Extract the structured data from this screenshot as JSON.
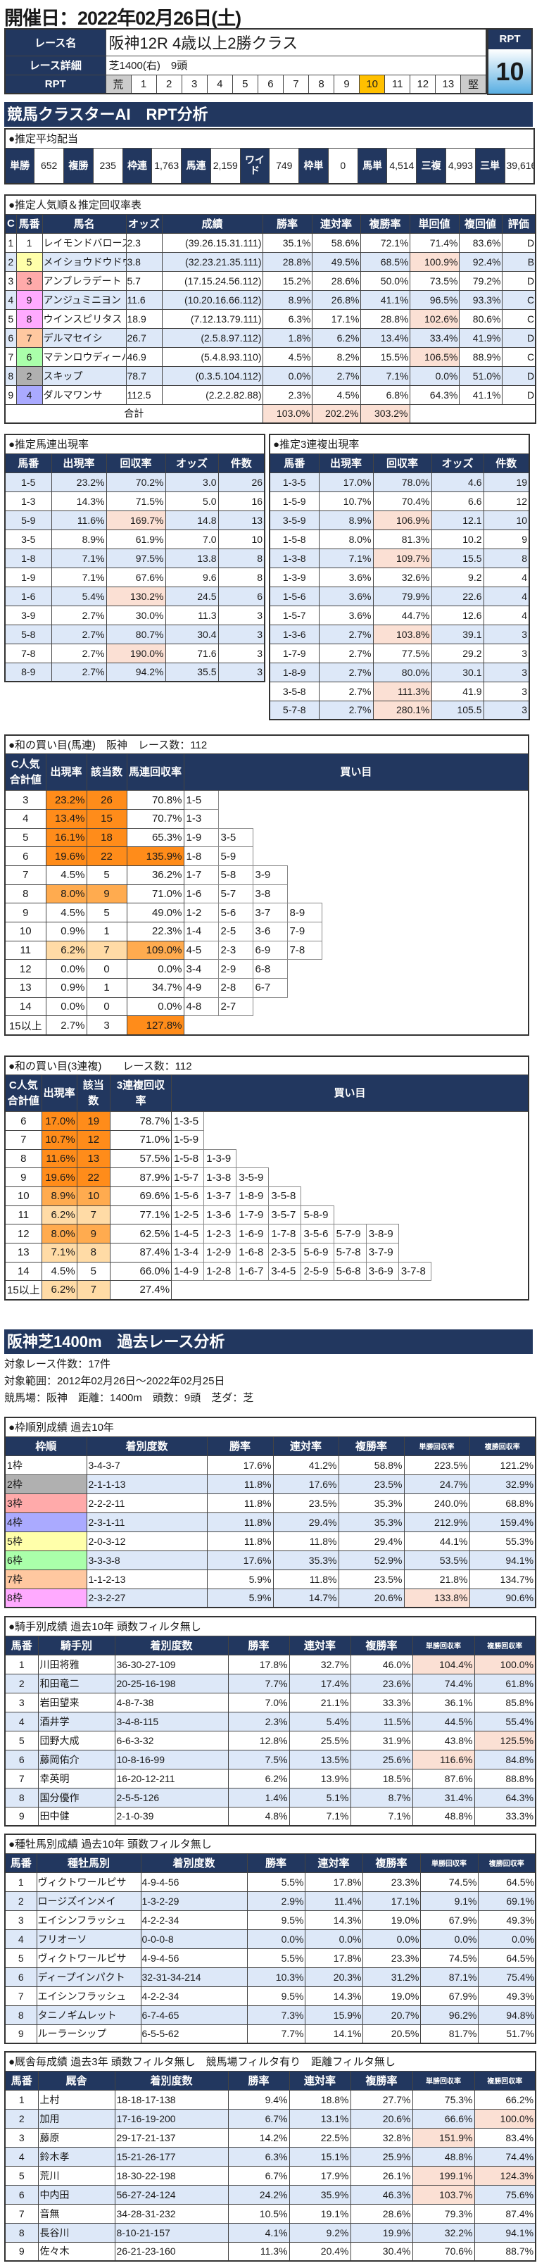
{
  "header": {
    "title": "開催日：2022年02月26日(土)"
  },
  "race": {
    "name_label": "レース名",
    "name": "阪神12R 4歳以上2勝クラス",
    "detail_label": "レース詳細",
    "detail": "芝1400(右)　9頭",
    "rpt_label": "RPT",
    "scale": [
      "荒",
      "1",
      "2",
      "3",
      "4",
      "5",
      "6",
      "7",
      "8",
      "9",
      "10",
      "11",
      "12",
      "13",
      "堅"
    ],
    "rpt_value": "10",
    "selected_color": "#ffc000"
  },
  "ai_section": {
    "title": "競馬クラスターAI　RPT分析"
  },
  "payout": {
    "title": "●推定平均配当",
    "items": [
      {
        "label": "単勝",
        "value": "652"
      },
      {
        "label": "複勝",
        "value": "235"
      },
      {
        "label": "枠連",
        "value": "1,763"
      },
      {
        "label": "馬連",
        "value": "2,159"
      },
      {
        "label": "ワイド",
        "value": "749"
      },
      {
        "label": "枠単",
        "value": "0"
      },
      {
        "label": "馬単",
        "value": "4,514"
      },
      {
        "label": "三複",
        "value": "4,993"
      },
      {
        "label": "三単",
        "value": "39,616"
      }
    ]
  },
  "popularity": {
    "title": "●推定人気順＆推定回収率表",
    "columns": [
      "C",
      "馬番",
      "馬名",
      "オッズ",
      "成績",
      "勝率",
      "連対率",
      "複勝率",
      "単回値",
      "複回値",
      "評価"
    ],
    "rows": [
      [
        "1",
        "1",
        "レイモンドバローズ",
        "2.3",
        "(39.26.15.31.111)",
        "35.1%",
        "58.6%",
        "72.1%",
        "71.4%",
        "83.6%",
        "D"
      ],
      [
        "2",
        "5",
        "メイショウドウドウ",
        "3.8",
        "(32.23.21.35.111)",
        "28.8%",
        "49.5%",
        "68.5%",
        "100.9%",
        "92.4%",
        "B"
      ],
      [
        "3",
        "3",
        "アンブレラデート",
        "5.7",
        "(17.15.24.56.112)",
        "15.2%",
        "28.6%",
        "50.0%",
        "73.5%",
        "79.2%",
        "D"
      ],
      [
        "4",
        "9",
        "アンジュミニヨン",
        "11.6",
        "(10.20.16.66.112)",
        "8.9%",
        "26.8%",
        "41.1%",
        "96.5%",
        "93.3%",
        "C"
      ],
      [
        "5",
        "8",
        "ウインスピリタス",
        "18.9",
        "(7.12.13.79.111)",
        "6.3%",
        "17.1%",
        "28.8%",
        "102.6%",
        "80.6%",
        "C"
      ],
      [
        "6",
        "7",
        "デルマセイシ",
        "26.7",
        "(2.5.8.97.112)",
        "1.8%",
        "6.2%",
        "13.4%",
        "33.4%",
        "41.9%",
        "D"
      ],
      [
        "7",
        "6",
        "マテンロウディーバ",
        "46.9",
        "(5.4.8.93.110)",
        "4.5%",
        "8.2%",
        "15.5%",
        "106.5%",
        "88.9%",
        "C"
      ],
      [
        "8",
        "2",
        "スキップ",
        "78.7",
        "(0.3.5.104.112)",
        "0.0%",
        "2.7%",
        "7.1%",
        "0.0%",
        "51.0%",
        "D"
      ],
      [
        "9",
        "4",
        "ダルマワンサ",
        "112.5",
        "(2.2.2.82.88)",
        "2.3%",
        "4.5%",
        "6.8%",
        "64.3%",
        "41.1%",
        "D"
      ]
    ],
    "num_colors": [
      "#ffffff",
      "#ffffaa",
      "#ffaaaa",
      "#ffaaff",
      "#ffaaff",
      "#ffc8a0",
      "#aaffaa",
      "#b0b0b0",
      "#aaaaff"
    ],
    "highlight": [
      [
        1,
        8
      ],
      [
        4,
        8
      ],
      [
        6,
        8
      ]
    ],
    "total_label": "合計",
    "totals": [
      "103.0%",
      "202.2%",
      "303.2%"
    ]
  },
  "umaren": {
    "title": "●推定馬連出現率",
    "columns": [
      "馬番",
      "出現率",
      "回収率",
      "オッズ",
      "件数"
    ],
    "rows": [
      [
        "1-5",
        "23.2%",
        "70.2%",
        "3.0",
        "26"
      ],
      [
        "1-3",
        "14.3%",
        "71.5%",
        "5.0",
        "16"
      ],
      [
        "5-9",
        "11.6%",
        "169.7%",
        "14.8",
        "13"
      ],
      [
        "3-5",
        "8.9%",
        "61.9%",
        "7.0",
        "10"
      ],
      [
        "1-8",
        "7.1%",
        "97.5%",
        "13.8",
        "8"
      ],
      [
        "1-9",
        "7.1%",
        "67.6%",
        "9.6",
        "8"
      ],
      [
        "1-6",
        "5.4%",
        "130.2%",
        "24.5",
        "6"
      ],
      [
        "3-9",
        "2.7%",
        "30.0%",
        "11.3",
        "3"
      ],
      [
        "5-8",
        "2.7%",
        "80.7%",
        "30.4",
        "3"
      ],
      [
        "7-8",
        "2.7%",
        "190.0%",
        "71.6",
        "3"
      ],
      [
        "8-9",
        "2.7%",
        "94.2%",
        "35.5",
        "3"
      ]
    ],
    "highlight": [
      [
        2,
        2
      ],
      [
        6,
        2
      ],
      [
        9,
        2
      ]
    ]
  },
  "sanrenpuku": {
    "title": "●推定3連複出現率",
    "columns": [
      "馬番",
      "出現率",
      "回収率",
      "オッズ",
      "件数"
    ],
    "rows": [
      [
        "1-3-5",
        "17.0%",
        "78.0%",
        "4.6",
        "19"
      ],
      [
        "1-5-9",
        "10.7%",
        "70.4%",
        "6.6",
        "12"
      ],
      [
        "3-5-9",
        "8.9%",
        "106.9%",
        "12.1",
        "10"
      ],
      [
        "1-5-8",
        "8.0%",
        "81.3%",
        "10.2",
        "9"
      ],
      [
        "1-3-8",
        "7.1%",
        "109.7%",
        "15.5",
        "8"
      ],
      [
        "1-3-9",
        "3.6%",
        "32.6%",
        "9.2",
        "4"
      ],
      [
        "1-5-6",
        "3.6%",
        "79.9%",
        "22.6",
        "4"
      ],
      [
        "1-5-7",
        "3.6%",
        "44.7%",
        "12.6",
        "4"
      ],
      [
        "1-3-6",
        "2.7%",
        "103.8%",
        "39.1",
        "3"
      ],
      [
        "1-7-9",
        "2.7%",
        "77.5%",
        "29.2",
        "3"
      ],
      [
        "1-8-9",
        "2.7%",
        "80.0%",
        "30.1",
        "3"
      ],
      [
        "3-5-8",
        "2.7%",
        "111.3%",
        "41.9",
        "3"
      ],
      [
        "5-7-8",
        "2.7%",
        "280.1%",
        "105.5",
        "3"
      ]
    ],
    "highlight": [
      [
        2,
        2
      ],
      [
        4,
        2
      ],
      [
        8,
        2
      ],
      [
        11,
        2
      ],
      [
        12,
        2
      ]
    ]
  },
  "wa_umaren": {
    "title": "●和の買い目(馬連)　阪神　レース数：112",
    "columns": [
      "C人気合計値",
      "出現率",
      "該当数",
      "馬連回収率",
      "買い目"
    ],
    "rows": [
      {
        "c": "3",
        "rate": "23.2%",
        "n": "26",
        "ret": "70.8%",
        "rate_level": 3,
        "ret_level": 0,
        "buys": [
          "1-5"
        ]
      },
      {
        "c": "4",
        "rate": "13.4%",
        "n": "15",
        "ret": "70.7%",
        "rate_level": 3,
        "ret_level": 0,
        "buys": [
          "1-3"
        ]
      },
      {
        "c": "5",
        "rate": "16.1%",
        "n": "18",
        "ret": "65.3%",
        "rate_level": 3,
        "ret_level": 0,
        "buys": [
          "1-9",
          "3-5"
        ]
      },
      {
        "c": "6",
        "rate": "19.6%",
        "n": "22",
        "ret": "135.9%",
        "rate_level": 3,
        "ret_level": 3,
        "buys": [
          "1-8",
          "5-9"
        ]
      },
      {
        "c": "7",
        "rate": "4.5%",
        "n": "5",
        "ret": "36.2%",
        "rate_level": 0,
        "ret_level": 0,
        "buys": [
          "1-7",
          "5-8",
          "3-9"
        ]
      },
      {
        "c": "8",
        "rate": "8.0%",
        "n": "9",
        "ret": "71.0%",
        "rate_level": 2,
        "ret_level": 0,
        "buys": [
          "1-6",
          "5-7",
          "3-8"
        ]
      },
      {
        "c": "9",
        "rate": "4.5%",
        "n": "5",
        "ret": "49.0%",
        "rate_level": 0,
        "ret_level": 0,
        "buys": [
          "1-2",
          "5-6",
          "3-7",
          "8-9"
        ]
      },
      {
        "c": "10",
        "rate": "0.9%",
        "n": "1",
        "ret": "22.3%",
        "rate_level": 0,
        "ret_level": 0,
        "buys": [
          "1-4",
          "2-5",
          "3-6",
          "7-9"
        ]
      },
      {
        "c": "11",
        "rate": "6.2%",
        "n": "7",
        "ret": "109.0%",
        "rate_level": 1,
        "ret_level": 2,
        "buys": [
          "4-5",
          "2-3",
          "6-9",
          "7-8"
        ]
      },
      {
        "c": "12",
        "rate": "0.0%",
        "n": "0",
        "ret": "0.0%",
        "rate_level": 0,
        "ret_level": 0,
        "buys": [
          "3-4",
          "2-9",
          "6-8"
        ]
      },
      {
        "c": "13",
        "rate": "0.9%",
        "n": "1",
        "ret": "34.7%",
        "rate_level": 0,
        "ret_level": 0,
        "buys": [
          "4-9",
          "2-8",
          "6-7"
        ]
      },
      {
        "c": "14",
        "rate": "0.0%",
        "n": "0",
        "ret": "0.0%",
        "rate_level": 0,
        "ret_level": 0,
        "buys": [
          "4-8",
          "2-7"
        ]
      },
      {
        "c": "15以上",
        "rate": "2.7%",
        "n": "3",
        "ret": "127.8%",
        "rate_level": 0,
        "ret_level": 3,
        "buys": []
      }
    ]
  },
  "wa_sanrenpuku": {
    "title": "●和の買い目(3連複)　　レース数：112",
    "columns": [
      "C人気合計値",
      "出現率",
      "該当数",
      "3連複回収率",
      "買い目"
    ],
    "rows": [
      {
        "c": "6",
        "rate": "17.0%",
        "n": "19",
        "ret": "78.7%",
        "rate_level": 3,
        "ret_level": 0,
        "buys": [
          "1-3-5"
        ]
      },
      {
        "c": "7",
        "rate": "10.7%",
        "n": "12",
        "ret": "71.0%",
        "rate_level": 3,
        "ret_level": 0,
        "buys": [
          "1-5-9"
        ]
      },
      {
        "c": "8",
        "rate": "11.6%",
        "n": "13",
        "ret": "57.5%",
        "rate_level": 3,
        "ret_level": 0,
        "buys": [
          "1-5-8",
          "1-3-9"
        ]
      },
      {
        "c": "9",
        "rate": "19.6%",
        "n": "22",
        "ret": "87.9%",
        "rate_level": 3,
        "ret_level": 0,
        "buys": [
          "1-5-7",
          "1-3-8",
          "3-5-9"
        ]
      },
      {
        "c": "10",
        "rate": "8.9%",
        "n": "10",
        "ret": "69.6%",
        "rate_level": 2,
        "ret_level": 0,
        "buys": [
          "1-5-6",
          "1-3-7",
          "1-8-9",
          "3-5-8"
        ]
      },
      {
        "c": "11",
        "rate": "6.2%",
        "n": "7",
        "ret": "77.1%",
        "rate_level": 1,
        "ret_level": 0,
        "buys": [
          "1-2-5",
          "1-3-6",
          "1-7-9",
          "3-5-7",
          "5-8-9"
        ]
      },
      {
        "c": "12",
        "rate": "8.0%",
        "n": "9",
        "ret": "62.5%",
        "rate_level": 2,
        "ret_level": 0,
        "buys": [
          "1-4-5",
          "1-2-3",
          "1-6-9",
          "1-7-8",
          "3-5-6",
          "5-7-9",
          "3-8-9"
        ]
      },
      {
        "c": "13",
        "rate": "7.1%",
        "n": "8",
        "ret": "87.4%",
        "rate_level": 1,
        "ret_level": 0,
        "buys": [
          "1-3-4",
          "1-2-9",
          "1-6-8",
          "2-3-5",
          "5-6-9",
          "5-7-8",
          "3-7-9"
        ]
      },
      {
        "c": "14",
        "rate": "4.5%",
        "n": "5",
        "ret": "66.0%",
        "rate_level": 0,
        "ret_level": 0,
        "buys": [
          "1-4-9",
          "1-2-8",
          "1-6-7",
          "3-4-5",
          "2-5-9",
          "5-6-8",
          "3-6-9",
          "3-7-8"
        ]
      },
      {
        "c": "15以上",
        "rate": "6.2%",
        "n": "7",
        "ret": "27.4%",
        "rate_level": 1,
        "ret_level": 0,
        "buys": []
      }
    ]
  },
  "past": {
    "title": "阪神芝1400m　過去レース分析",
    "lines": [
      "対象レース件数：17件",
      "対象範囲：2012年02月26日～2022年02月25日",
      "競馬場：阪神　距離：1400m　頭数：9頭　芝ダ：芝"
    ]
  },
  "waku": {
    "title": "●枠順別成績 過去10年",
    "columns": [
      "枠順",
      "着別度数",
      "勝率",
      "連対率",
      "複勝率",
      "単勝回収率",
      "複勝回収率"
    ],
    "rows": [
      [
        "1枠",
        "3-4-3-7",
        "17.6%",
        "41.2%",
        "58.8%",
        "223.5%",
        "121.2%"
      ],
      [
        "2枠",
        "2-1-1-13",
        "11.8%",
        "17.6%",
        "23.5%",
        "24.7%",
        "32.9%"
      ],
      [
        "3枠",
        "2-2-2-11",
        "11.8%",
        "23.5%",
        "35.3%",
        "240.0%",
        "68.8%"
      ],
      [
        "4枠",
        "2-3-1-11",
        "11.8%",
        "29.4%",
        "35.3%",
        "212.9%",
        "159.4%"
      ],
      [
        "5枠",
        "2-0-3-12",
        "11.8%",
        "11.8%",
        "29.4%",
        "44.1%",
        "55.3%"
      ],
      [
        "6枠",
        "3-3-3-8",
        "17.6%",
        "35.3%",
        "52.9%",
        "53.5%",
        "94.1%"
      ],
      [
        "7枠",
        "1-1-2-13",
        "5.9%",
        "11.8%",
        "23.5%",
        "21.8%",
        "134.7%"
      ],
      [
        "8枠",
        "2-3-2-27",
        "5.9%",
        "14.7%",
        "20.6%",
        "133.8%",
        "90.6%"
      ]
    ],
    "frame_colors": [
      "#ffffff",
      "#b0b0b0",
      "#ffaaaa",
      "#aaaaff",
      "#ffffaa",
      "#aaffaa",
      "#ffc8a0",
      "#ffaaff"
    ],
    "highlight": [
      [
        7,
        5
      ]
    ]
  },
  "jockey": {
    "title": "●騎手別成績 過去10年 頭数フィルタ無し",
    "columns": [
      "馬番",
      "騎手別",
      "着別度数",
      "勝率",
      "連対率",
      "複勝率",
      "単勝回収率",
      "複勝回収率"
    ],
    "rows": [
      [
        "1",
        "川田将雅",
        "36-30-27-109",
        "17.8%",
        "32.7%",
        "46.0%",
        "104.4%",
        "100.0%"
      ],
      [
        "2",
        "和田竜二",
        "20-25-16-198",
        "7.7%",
        "17.4%",
        "23.6%",
        "74.4%",
        "61.8%"
      ],
      [
        "3",
        "岩田望来",
        "4-8-7-38",
        "7.0%",
        "21.1%",
        "33.3%",
        "36.1%",
        "85.8%"
      ],
      [
        "4",
        "酒井学",
        "3-4-8-115",
        "2.3%",
        "5.4%",
        "11.5%",
        "44.5%",
        "55.4%"
      ],
      [
        "5",
        "団野大成",
        "6-6-3-32",
        "12.8%",
        "25.5%",
        "31.9%",
        "43.8%",
        "125.5%"
      ],
      [
        "6",
        "藤岡佑介",
        "10-8-16-99",
        "7.5%",
        "13.5%",
        "25.6%",
        "116.6%",
        "84.8%"
      ],
      [
        "7",
        "幸英明",
        "16-20-12-211",
        "6.2%",
        "13.9%",
        "18.5%",
        "87.6%",
        "88.8%"
      ],
      [
        "8",
        "国分優作",
        "2-5-5-126",
        "1.4%",
        "5.1%",
        "8.7%",
        "31.4%",
        "64.3%"
      ],
      [
        "9",
        "田中健",
        "2-1-0-39",
        "4.8%",
        "7.1%",
        "7.1%",
        "48.8%",
        "33.3%"
      ]
    ],
    "highlight": [
      [
        0,
        6
      ],
      [
        0,
        7
      ],
      [
        4,
        7
      ],
      [
        5,
        6
      ]
    ]
  },
  "sire": {
    "title": "●種牡馬別成績 過去10年 頭数フィルタ無し",
    "columns": [
      "馬番",
      "種牡馬別",
      "着別度数",
      "勝率",
      "連対率",
      "複勝率",
      "単勝回収率",
      "複勝回収率"
    ],
    "rows": [
      [
        "1",
        "ヴィクトワールピサ",
        "4-9-4-56",
        "5.5%",
        "17.8%",
        "23.3%",
        "74.5%",
        "64.5%"
      ],
      [
        "2",
        "ロージズインメイ",
        "1-3-2-29",
        "2.9%",
        "11.4%",
        "17.1%",
        "9.1%",
        "69.1%"
      ],
      [
        "3",
        "エイシンフラッシュ",
        "4-2-2-34",
        "9.5%",
        "14.3%",
        "19.0%",
        "67.9%",
        "49.3%"
      ],
      [
        "4",
        "フリオーソ",
        "0-0-0-8",
        "0.0%",
        "0.0%",
        "0.0%",
        "0.0%",
        "0.0%"
      ],
      [
        "5",
        "ヴィクトワールピサ",
        "4-9-4-56",
        "5.5%",
        "17.8%",
        "23.3%",
        "74.5%",
        "64.5%"
      ],
      [
        "6",
        "ディープインパクト",
        "32-31-34-214",
        "10.3%",
        "20.3%",
        "31.2%",
        "87.1%",
        "75.4%"
      ],
      [
        "7",
        "エイシンフラッシュ",
        "4-2-2-34",
        "9.5%",
        "14.3%",
        "19.0%",
        "67.9%",
        "49.3%"
      ],
      [
        "8",
        "タニノギムレット",
        "6-7-4-65",
        "7.3%",
        "15.9%",
        "20.7%",
        "96.2%",
        "94.8%"
      ],
      [
        "9",
        "ルーラーシップ",
        "6-5-5-62",
        "7.7%",
        "14.1%",
        "20.5%",
        "81.7%",
        "51.7%"
      ]
    ],
    "highlight": []
  },
  "trainer": {
    "title": "●厩舎毎成績 過去3年 頭数フィルタ無し　競馬場フィルタ有り　距離フィルタ無し",
    "columns": [
      "馬番",
      "厩舎",
      "着別度数",
      "勝率",
      "連対率",
      "複勝率",
      "単勝回収率",
      "複勝回収率"
    ],
    "rows": [
      [
        "1",
        "上村",
        "18-18-17-138",
        "9.4%",
        "18.8%",
        "27.7%",
        "75.3%",
        "66.2%"
      ],
      [
        "2",
        "加用",
        "17-16-19-200",
        "6.7%",
        "13.1%",
        "20.6%",
        "66.6%",
        "100.0%"
      ],
      [
        "3",
        "藤原",
        "29-17-21-137",
        "14.2%",
        "22.5%",
        "32.8%",
        "151.9%",
        "83.4%"
      ],
      [
        "4",
        "鈴木孝",
        "15-21-26-177",
        "6.3%",
        "15.1%",
        "25.9%",
        "48.8%",
        "74.4%"
      ],
      [
        "5",
        "荒川",
        "18-30-22-198",
        "6.7%",
        "17.9%",
        "26.1%",
        "199.1%",
        "124.3%"
      ],
      [
        "6",
        "中内田",
        "56-27-24-124",
        "24.2%",
        "35.9%",
        "46.3%",
        "103.7%",
        "75.6%"
      ],
      [
        "7",
        "音無",
        "34-28-31-232",
        "10.5%",
        "19.1%",
        "28.6%",
        "79.3%",
        "87.4%"
      ],
      [
        "8",
        "長谷川",
        "8-10-21-157",
        "4.1%",
        "9.2%",
        "19.9%",
        "32.2%",
        "94.1%"
      ],
      [
        "9",
        "佐々木",
        "26-21-23-160",
        "11.3%",
        "20.4%",
        "30.4%",
        "70.6%",
        "88.7%"
      ]
    ],
    "highlight": [
      [
        1,
        7
      ],
      [
        2,
        6
      ],
      [
        4,
        6
      ],
      [
        4,
        7
      ],
      [
        5,
        6
      ]
    ]
  }
}
